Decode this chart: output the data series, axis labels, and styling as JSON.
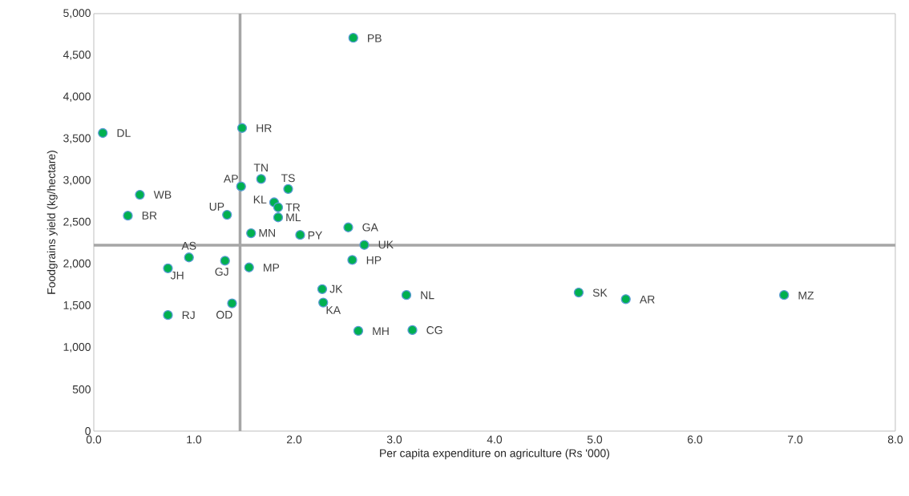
{
  "chart_data": {
    "type": "scatter",
    "xlabel": "Per capita expenditure on agriculture (Rs '000)",
    "ylabel": "Foodgrains yield (kg/hectare)",
    "xlim": [
      0,
      8
    ],
    "ylim": [
      0,
      5000
    ],
    "xticks": [
      {
        "value": 0,
        "label": "0.0"
      },
      {
        "value": 1,
        "label": "1.0"
      },
      {
        "value": 2,
        "label": "2.0"
      },
      {
        "value": 3,
        "label": "3.0"
      },
      {
        "value": 4,
        "label": "4.0"
      },
      {
        "value": 5,
        "label": "5.0"
      },
      {
        "value": 6,
        "label": "6.0"
      },
      {
        "value": 7,
        "label": "7.0"
      },
      {
        "value": 8,
        "label": "8.0"
      }
    ],
    "yticks": [
      0,
      500,
      {
        "value": 1000,
        "label": "1,000"
      },
      {
        "value": 1500,
        "label": "1,500"
      },
      {
        "value": 2000,
        "label": "2,000"
      },
      {
        "value": 2500,
        "label": "2,500"
      },
      {
        "value": 3000,
        "label": "3,000"
      },
      {
        "value": 3500,
        "label": "3,500"
      },
      {
        "value": 4000,
        "label": "4,000"
      },
      {
        "value": 4500,
        "label": "4,500"
      },
      {
        "value": 5000,
        "label": "5,000"
      }
    ],
    "series": [
      {
        "color": "#00b050",
        "x": [
          2.59,
          0.09,
          1.48,
          1.67,
          1.47,
          1.94,
          1.8,
          1.84,
          0.46,
          0.34,
          1.33,
          1.84,
          1.57,
          2.06,
          2.54,
          2.7,
          0.95,
          2.58,
          1.31,
          0.74,
          1.55,
          2.28,
          2.29,
          3.12,
          4.84,
          5.31,
          6.89,
          0.74,
          1.38,
          2.64,
          3.18
        ],
        "values": [
          4710,
          3570,
          3630,
          3020,
          2930,
          2900,
          2740,
          2680,
          2830,
          2580,
          2590,
          2560,
          2370,
          2350,
          2440,
          2230,
          2080,
          2050,
          2040,
          1950,
          1960,
          1700,
          1540,
          1630,
          1660,
          1580,
          1630,
          1390,
          1530,
          1200,
          1210
        ]
      }
    ],
    "ref_lines": [
      {
        "axis": "x",
        "value": 1.46,
        "color": "#a6a6a6"
      },
      {
        "axis": "y",
        "value": 2227,
        "color": "#a6a6a6"
      }
    ],
    "annotations": [
      {
        "text": "PB",
        "x": 2.59,
        "y": 4705
      },
      {
        "text": "DL",
        "x": 0.09,
        "y": 3570
      },
      {
        "text": "HR",
        "x": 1.48,
        "y": 3628
      },
      {
        "text": "TN",
        "x": 1.67,
        "y": 3020
      },
      {
        "text": "AP",
        "x": 1.47,
        "y": 2927
      },
      {
        "text": "TS",
        "x": 1.94,
        "y": 2895
      },
      {
        "text": "KL",
        "x": 1.8,
        "y": 2735
      },
      {
        "text": "TR",
        "x": 1.84,
        "y": 2680
      },
      {
        "text": "WB",
        "x": 0.46,
        "y": 2831
      },
      {
        "text": "BR",
        "x": 0.34,
        "y": 2582
      },
      {
        "text": "UP",
        "x": 1.33,
        "y": 2591
      },
      {
        "text": "ML",
        "x": 1.84,
        "y": 2560
      },
      {
        "text": "MN",
        "x": 1.57,
        "y": 2373
      },
      {
        "text": "PY",
        "x": 2.06,
        "y": 2345
      },
      {
        "text": "GA",
        "x": 2.54,
        "y": 2441
      },
      {
        "text": "UK",
        "x": 2.7,
        "y": 2233
      },
      {
        "text": "AS",
        "x": 0.95,
        "y": 2083
      },
      {
        "text": "HP",
        "x": 2.58,
        "y": 2047
      },
      {
        "text": "GJ",
        "x": 1.31,
        "y": 2044
      },
      {
        "text": "JH",
        "x": 0.74,
        "y": 1951
      },
      {
        "text": "MP",
        "x": 1.55,
        "y": 1958
      },
      {
        "text": "JK",
        "x": 2.28,
        "y": 1702
      },
      {
        "text": "KA",
        "x": 2.29,
        "y": 1536
      },
      {
        "text": "NL",
        "x": 3.12,
        "y": 1628
      },
      {
        "text": "SK",
        "x": 4.84,
        "y": 1657
      },
      {
        "text": "AR",
        "x": 5.31,
        "y": 1577
      },
      {
        "text": "MZ",
        "x": 6.89,
        "y": 1625
      },
      {
        "text": "RJ",
        "x": 0.74,
        "y": 1389
      },
      {
        "text": "OD",
        "x": 1.38,
        "y": 1529
      },
      {
        "text": "MH",
        "x": 2.64,
        "y": 1197
      },
      {
        "text": "CG",
        "x": 3.18,
        "y": 1209
      }
    ]
  }
}
